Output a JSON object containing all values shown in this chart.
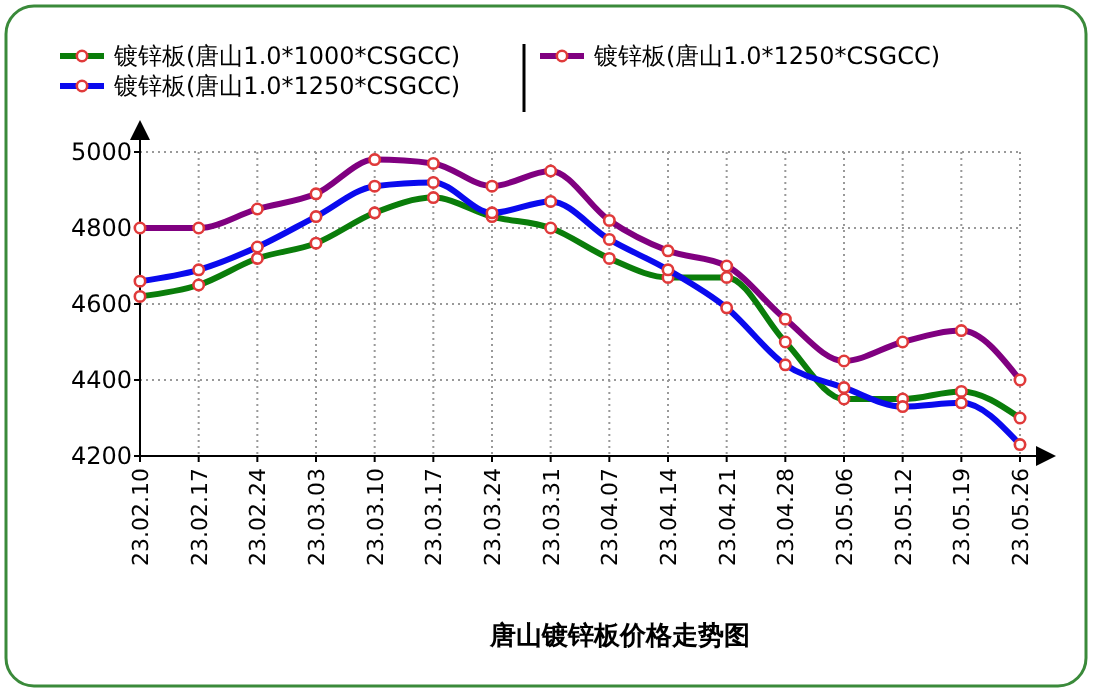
{
  "chart_data": {
    "type": "line",
    "title": "唐山镀锌板价格走势图",
    "categories": [
      "23.02.10",
      "23.02.17",
      "23.02.24",
      "23.03.03",
      "23.03.10",
      "23.03.17",
      "23.03.24",
      "23.03.31",
      "23.04.07",
      "23.04.14",
      "23.04.21",
      "23.04.28",
      "23.05.06",
      "23.05.12",
      "23.05.19",
      "23.05.26"
    ],
    "series": [
      {
        "name": "镀锌板(唐山1.0*1000*CSGCC)",
        "color": "#0a7d0a",
        "values": [
          4620,
          4650,
          4720,
          4760,
          4840,
          4880,
          4830,
          4800,
          4720,
          4670,
          4670,
          4500,
          4350,
          4350,
          4370,
          4300
        ]
      },
      {
        "name": "镀锌板(唐山1.0*1250*CSGCC)",
        "color": "#0a0aee",
        "values": [
          4660,
          4690,
          4750,
          4830,
          4910,
          4920,
          4840,
          4870,
          4770,
          4690,
          4590,
          4440,
          4380,
          4330,
          4340,
          4230
        ]
      },
      {
        "name": "镀锌板(唐山1.0*1250*CSGCC)",
        "color": "#800080",
        "values": [
          4800,
          4800,
          4850,
          4890,
          4980,
          4970,
          4910,
          4950,
          4820,
          4740,
          4700,
          4560,
          4450,
          4500,
          4530,
          4400
        ]
      }
    ],
    "ylim": [
      4200,
      5000
    ],
    "yticks": [
      4200,
      4400,
      4600,
      4800,
      5000
    ],
    "grid": true,
    "legend": "top left",
    "marker": "circle",
    "line_style": "solid"
  }
}
